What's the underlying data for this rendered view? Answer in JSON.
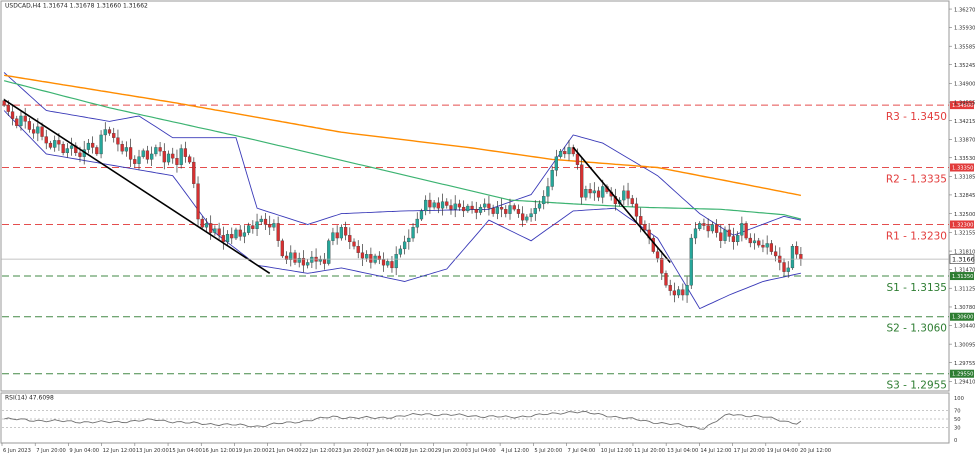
{
  "symbol_header": "USDCAD,H4  1.31674 1.31678 1.31660 1.31662",
  "rsi_header": "RSI(14) 47.6098",
  "colors": {
    "bull": "#26a69a",
    "bear": "#d63031",
    "ma_fast": "#3cb371",
    "ma_slow": "#ff8c00",
    "bands": "#3a3ab8",
    "trendline": "#000000",
    "resistance": "#e23b3b",
    "support": "#2e7d32",
    "rsi_line": "#707070"
  },
  "chart_data": {
    "type": "candlestick",
    "y_axis_ticks": [
      "1.36270",
      "1.35930",
      "1.35585",
      "1.35245",
      "1.34900",
      "1.34555",
      "1.34215",
      "1.33870",
      "1.33530",
      "1.33185",
      "1.32845",
      "1.32500",
      "1.32155",
      "1.31810",
      "1.31470",
      "1.31125",
      "1.30780",
      "1.30440",
      "1.30095",
      "1.29755",
      "1.29410"
    ],
    "ylim": [
      1.2925,
      1.364
    ],
    "x_axis_labels": [
      "6 Jun 2023",
      "7 Jun 20:00",
      "9 Jun 04:00",
      "12 Jun 12:00",
      "13 Jun 20:00",
      "15 Jun 04:00",
      "16 Jun 12:00",
      "19 Jun 20:00",
      "21 Jun 04:00",
      "22 Jun 12:00",
      "23 Jun 20:00",
      "27 Jun 04:00",
      "28 Jun 12:00",
      "29 Jun 20:00",
      "3 Jul 04:00",
      "4 Jul 12:00",
      "5 Jul 20:00",
      "7 Jul 04:00",
      "10 Jul 12:00",
      "11 Jul 20:00",
      "13 Jul 04:00",
      "14 Jul 12:00",
      "17 Jul 20:00",
      "19 Jul 04:00",
      "20 Jul 12:00"
    ],
    "current_price": "1.31662",
    "closes": [
      1.345,
      1.3438,
      1.3425,
      1.3412,
      1.343,
      1.342,
      1.3405,
      1.3398,
      1.341,
      1.3392,
      1.338,
      1.3372,
      1.3385,
      1.3378,
      1.3362,
      1.337,
      1.3375,
      1.3362,
      1.3355,
      1.3368,
      1.338,
      1.3372,
      1.336,
      1.3395,
      1.3405,
      1.3398,
      1.339,
      1.3378,
      1.3365,
      1.3372,
      1.335,
      1.3342,
      1.3355,
      1.3366,
      1.335,
      1.336,
      1.3372,
      1.3365,
      1.3345,
      1.336,
      1.3352,
      1.334,
      1.337,
      1.3355,
      1.3345,
      1.3305,
      1.324,
      1.3225,
      1.3232,
      1.3215,
      1.3222,
      1.321,
      1.3198,
      1.3212,
      1.3205,
      1.322,
      1.3208,
      1.3215,
      1.3228,
      1.3222,
      1.3235,
      1.324,
      1.323,
      1.3225,
      1.3232,
      1.32,
      1.3172,
      1.3165,
      1.3178,
      1.316,
      1.3168,
      1.3155,
      1.316,
      1.317,
      1.3162,
      1.3165,
      1.3158,
      1.32,
      1.3215,
      1.3205,
      1.3225,
      1.321,
      1.3198,
      1.319,
      1.3178,
      1.3168,
      1.3175,
      1.316,
      1.3172,
      1.3165,
      1.3155,
      1.3162,
      1.315,
      1.3175,
      1.3185,
      1.3198,
      1.3205,
      1.3225,
      1.324,
      1.3255,
      1.3275,
      1.3262,
      1.327,
      1.326,
      1.3272,
      1.3265,
      1.3258,
      1.3268,
      1.3262,
      1.3255,
      1.3264,
      1.3258,
      1.3252,
      1.3262,
      1.3268,
      1.326,
      1.325,
      1.3262,
      1.3258,
      1.325,
      1.3265,
      1.3258,
      1.325,
      1.3238,
      1.3244,
      1.325,
      1.326,
      1.3268,
      1.3282,
      1.33,
      1.333,
      1.3355,
      1.3365,
      1.336,
      1.3372,
      1.336,
      1.334,
      1.328,
      1.3295,
      1.3288,
      1.3292,
      1.328,
      1.33,
      1.329,
      1.3282,
      1.3268,
      1.3275,
      1.3292,
      1.3278,
      1.3268,
      1.3245,
      1.323,
      1.322,
      1.3205,
      1.318,
      1.3168,
      1.314,
      1.3118,
      1.3108,
      1.31,
      1.311,
      1.31,
      1.3118,
      1.3205,
      1.3222,
      1.3232,
      1.3228,
      1.3218,
      1.323,
      1.3215,
      1.32,
      1.322,
      1.3208,
      1.3198,
      1.321,
      1.3232,
      1.3205,
      1.3196,
      1.32,
      1.3192,
      1.3188,
      1.3195,
      1.318,
      1.3172,
      1.316,
      1.3143,
      1.315,
      1.319,
      1.3175,
      1.3166
    ],
    "moving_average_fast": [
      [
        0,
        1.3495
      ],
      [
        25,
        1.3445
      ],
      [
        60,
        1.3385
      ],
      [
        90,
        1.333
      ],
      [
        120,
        1.3275
      ],
      [
        135,
        1.3268
      ],
      [
        150,
        1.3262
      ],
      [
        170,
        1.3258
      ],
      [
        185,
        1.3248
      ],
      [
        198,
        1.3222
      ]
    ],
    "moving_average_slow": [
      [
        0,
        1.3505
      ],
      [
        40,
        1.3455
      ],
      [
        80,
        1.34
      ],
      [
        110,
        1.3372
      ],
      [
        130,
        1.335
      ],
      [
        155,
        1.3335
      ],
      [
        175,
        1.3305
      ],
      [
        198,
        1.327
      ]
    ],
    "bollinger_upper": [
      [
        0,
        1.351
      ],
      [
        10,
        1.344
      ],
      [
        25,
        1.342
      ],
      [
        32,
        1.343
      ],
      [
        40,
        1.339
      ],
      [
        55,
        1.339
      ],
      [
        60,
        1.326
      ],
      [
        72,
        1.323
      ],
      [
        80,
        1.325
      ],
      [
        95,
        1.3255
      ],
      [
        115,
        1.3258
      ],
      [
        125,
        1.3285
      ],
      [
        135,
        1.3395
      ],
      [
        142,
        1.338
      ],
      [
        155,
        1.332
      ],
      [
        165,
        1.325
      ],
      [
        173,
        1.321
      ],
      [
        185,
        1.3245
      ],
      [
        198,
        1.3222
      ]
    ],
    "bollinger_lower": [
      [
        0,
        1.344
      ],
      [
        10,
        1.336
      ],
      [
        25,
        1.334
      ],
      [
        40,
        1.332
      ],
      [
        50,
        1.3215
      ],
      [
        60,
        1.3155
      ],
      [
        72,
        1.314
      ],
      [
        80,
        1.315
      ],
      [
        95,
        1.3125
      ],
      [
        105,
        1.3148
      ],
      [
        115,
        1.3238
      ],
      [
        125,
        1.32
      ],
      [
        135,
        1.3255
      ],
      [
        145,
        1.326
      ],
      [
        155,
        1.3205
      ],
      [
        165,
        1.3075
      ],
      [
        172,
        1.31
      ],
      [
        180,
        1.3125
      ],
      [
        190,
        1.3142
      ],
      [
        198,
        1.313
      ]
    ],
    "trendlines": [
      [
        [
          0,
          1.346
        ],
        [
          63,
          1.314
        ]
      ],
      [
        [
          135,
          1.3372
        ],
        [
          158,
          1.316
        ]
      ]
    ],
    "levels": [
      {
        "label": "R3 - 1.3450",
        "price": 1.345,
        "tag": "1.34500",
        "kind": "resistance"
      },
      {
        "label": "R2 - 1.3335",
        "price": 1.3335,
        "tag": "1.33350",
        "kind": "resistance"
      },
      {
        "label": "R1 - 1.3230",
        "price": 1.323,
        "tag": "1.32300",
        "kind": "resistance"
      },
      {
        "label": "S1 - 1.3135",
        "price": 1.3135,
        "tag": "1.31350",
        "kind": "support"
      },
      {
        "label": "S2 - 1.3060",
        "price": 1.306,
        "tag": "1.30600",
        "kind": "support"
      },
      {
        "label": "S3 - 1.2955",
        "price": 1.2955,
        "tag": "1.29550",
        "kind": "support"
      }
    ],
    "rsi": {
      "ticks": [
        "100",
        "70",
        "50",
        "30",
        "0"
      ],
      "levels": [
        70,
        50,
        30
      ],
      "values": [
        [
          0,
          50
        ],
        [
          12,
          45
        ],
        [
          24,
          42
        ],
        [
          36,
          48
        ],
        [
          44,
          40
        ],
        [
          50,
          38
        ],
        [
          60,
          33
        ],
        [
          70,
          44
        ],
        [
          78,
          55
        ],
        [
          88,
          52
        ],
        [
          100,
          62
        ],
        [
          110,
          58
        ],
        [
          120,
          54
        ],
        [
          130,
          62
        ],
        [
          135,
          68
        ],
        [
          142,
          60
        ],
        [
          150,
          48
        ],
        [
          158,
          38
        ],
        [
          166,
          28
        ],
        [
          172,
          62
        ],
        [
          180,
          55
        ],
        [
          188,
          40
        ],
        [
          192,
          52
        ],
        [
          198,
          47.6
        ]
      ]
    }
  }
}
